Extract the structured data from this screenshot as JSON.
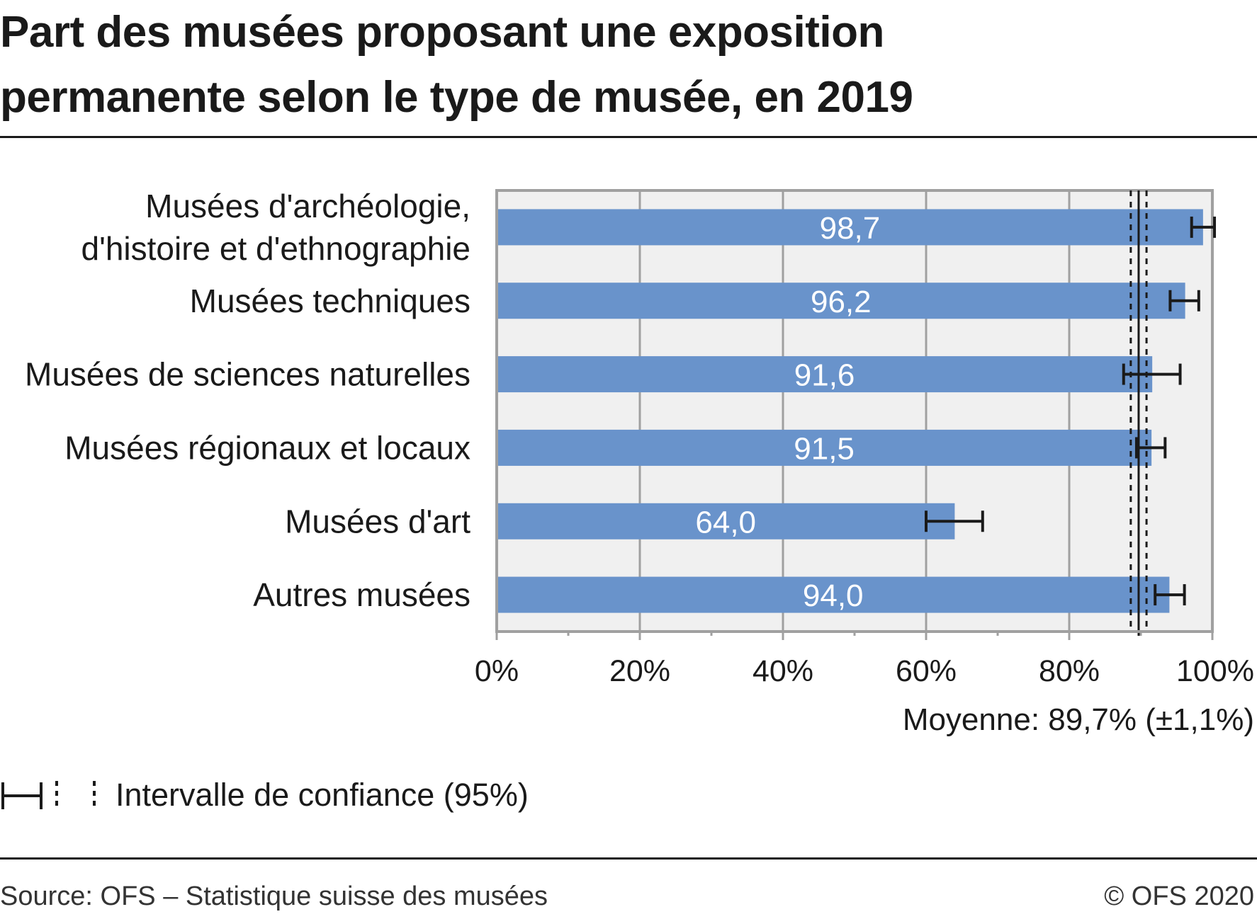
{
  "chart_data": {
    "type": "bar",
    "orientation": "horizontal",
    "title": "Part des musées proposant une exposition permanente selon le type de musée, en 2019",
    "title_lines": [
      "Part des musées proposant une exposition",
      "permanente selon le type de musée, en 2019"
    ],
    "categories": [
      [
        "Musées d'archéologie,",
        "d'histoire et d'ethnographie"
      ],
      [
        "Musées techniques"
      ],
      [
        "Musées de sciences naturelles"
      ],
      [
        "Musées régionaux et locaux"
      ],
      [
        "Musées d'art"
      ],
      [
        "Autres musées"
      ]
    ],
    "values": [
      98.7,
      96.2,
      91.6,
      91.5,
      64.0,
      94.0
    ],
    "value_labels": [
      "98,7",
      "96,2",
      "91,6",
      "91,5",
      "64,0",
      "94,0"
    ],
    "confidence_intervals": [
      [
        97.1,
        100.3
      ],
      [
        94.1,
        98.1
      ],
      [
        87.6,
        95.5
      ],
      [
        89.4,
        93.4
      ],
      [
        60.0,
        67.9
      ],
      [
        92.0,
        96.1
      ]
    ],
    "mean": 89.7,
    "mean_ci": 1.1,
    "mean_label": "Moyenne: 89,7% (±1,1%)",
    "xlim": [
      0,
      100
    ],
    "xticks": [
      0,
      20,
      40,
      60,
      80,
      100
    ],
    "xtick_labels": [
      "0%",
      "20%",
      "40%",
      "60%",
      "80%",
      "100%"
    ],
    "xlabel": "",
    "ylabel": "",
    "grid": true,
    "bar_color": "#6993cb",
    "plot_background": "#f0f0f0",
    "legend": {
      "placement": "bottom-left",
      "label": "Intervalle de confiance (95%)"
    }
  },
  "footer": {
    "source": "Source: OFS – Statistique suisse des musées",
    "copyright": "© OFS 2020"
  }
}
